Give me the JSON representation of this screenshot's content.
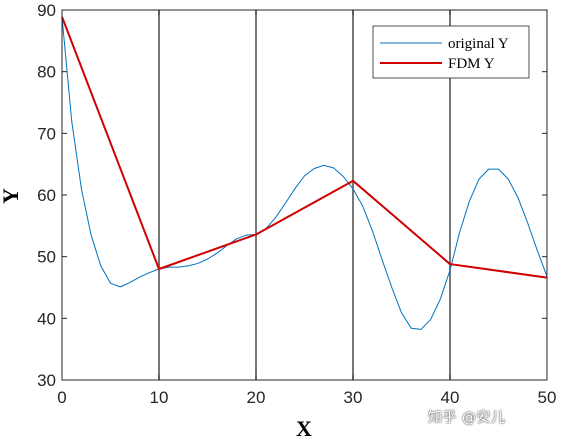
{
  "chart_data": {
    "type": "line",
    "xlabel": "X",
    "ylabel": "Y",
    "xlim": [
      0,
      50
    ],
    "ylim": [
      30,
      90
    ],
    "xticks": [
      0,
      10,
      20,
      30,
      40,
      50
    ],
    "yticks": [
      30,
      40,
      50,
      60,
      70,
      80,
      90
    ],
    "grid": false,
    "legend_position": "top-right",
    "vertical_lines": [
      10,
      20,
      30,
      40
    ],
    "series": [
      {
        "name": "original Y",
        "color": "#0072BD",
        "x": [
          0,
          1,
          2,
          3,
          4,
          5,
          6,
          7,
          8,
          9,
          10,
          11,
          12,
          13,
          14,
          15,
          16,
          17,
          18,
          19,
          20,
          21,
          22,
          23,
          24,
          25,
          26,
          27,
          28,
          29,
          30,
          31,
          32,
          33,
          34,
          35,
          36,
          37,
          38,
          39,
          40,
          41,
          42,
          43,
          44,
          45,
          46,
          47,
          48,
          49,
          50
        ],
        "y": [
          88.9,
          72,
          61,
          53.5,
          48.5,
          45.7,
          45.1,
          45.8,
          46.7,
          47.4,
          48.0,
          48.3,
          48.3,
          48.5,
          48.9,
          49.6,
          50.6,
          51.8,
          52.9,
          53.5,
          53.6,
          54.5,
          56.3,
          58.6,
          61.0,
          63.1,
          64.3,
          64.8,
          64.4,
          63.0,
          61.0,
          58.2,
          54.2,
          49.5,
          45.0,
          40.9,
          38.4,
          38.2,
          39.8,
          43.1,
          47.8,
          54.0,
          59.0,
          62.6,
          64.2,
          64.2,
          62.6,
          59.6,
          55.5,
          51.0,
          46.8
        ]
      },
      {
        "name": "FDM Y",
        "color": "#D10000",
        "x": [
          0,
          10,
          20,
          30,
          40,
          50
        ],
        "y": [
          88.9,
          48.0,
          53.6,
          62.3,
          48.8,
          46.6
        ]
      }
    ]
  },
  "watermark": "知乎 @安儿"
}
